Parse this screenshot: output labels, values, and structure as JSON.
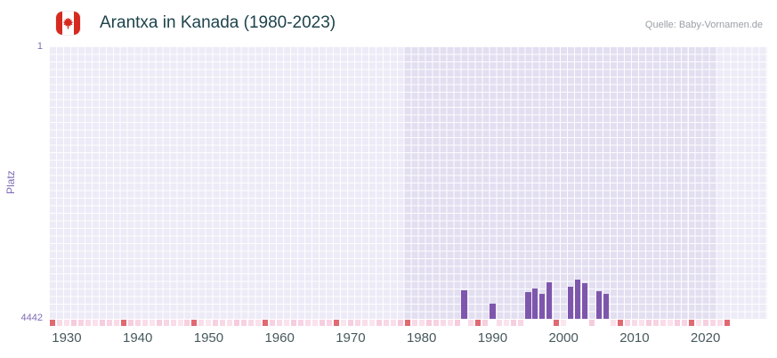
{
  "header": {
    "title": "Arantxa in Kanada (1980-2023)",
    "source": "Quelle: Baby-Vornamen.de",
    "flag_icon": "canada-flag"
  },
  "chart_data": {
    "type": "bar",
    "title": "Arantxa in Kanada (1980-2023)",
    "xlabel": "",
    "ylabel": "Platz",
    "y_axis": {
      "top_tick": "1",
      "bottom_tick": "4442",
      "min": 1,
      "max": 4442,
      "inverted": true
    },
    "x_ticks": [
      "1930",
      "1940",
      "1950",
      "1960",
      "1970",
      "1980",
      "1990",
      "2000",
      "2010",
      "2020"
    ],
    "x_range": [
      1927.5,
      2028.7
    ],
    "highlight_band_years": [
      1978,
      2021
    ],
    "grid": true,
    "legend": false,
    "series": [
      {
        "name": "Platz",
        "points": [
          {
            "year": 1986,
            "rank": 3980
          },
          {
            "year": 1990,
            "rank": 4200
          },
          {
            "year": 1995,
            "rank": 4010
          },
          {
            "year": 1996,
            "rank": 3950
          },
          {
            "year": 1997,
            "rank": 4040
          },
          {
            "year": 1998,
            "rank": 3850
          },
          {
            "year": 2001,
            "rank": 3920
          },
          {
            "year": 2002,
            "rank": 3800
          },
          {
            "year": 2003,
            "rank": 3860
          },
          {
            "year": 2005,
            "rank": 3990
          },
          {
            "year": 2006,
            "rank": 4030
          }
        ]
      }
    ],
    "unranked_years": {
      "range": [
        1928,
        2023
      ],
      "dark": [
        1928,
        1938,
        1948,
        1958,
        1968,
        1978,
        1988,
        1999,
        2008,
        2018,
        2023
      ]
    },
    "colors": {
      "bar": "#7e57ad",
      "band": "#e3dff1",
      "plot_bg": "#edebf7",
      "grid": "#ffffff",
      "marker_light": "#f5c7da",
      "marker_dark": "#e06972",
      "axis_purple": "#7f6cb5",
      "title": "#1d434b",
      "x_tick": "#47595d",
      "source": "#9aa0a6",
      "flag_red": "#d52b1e"
    }
  }
}
